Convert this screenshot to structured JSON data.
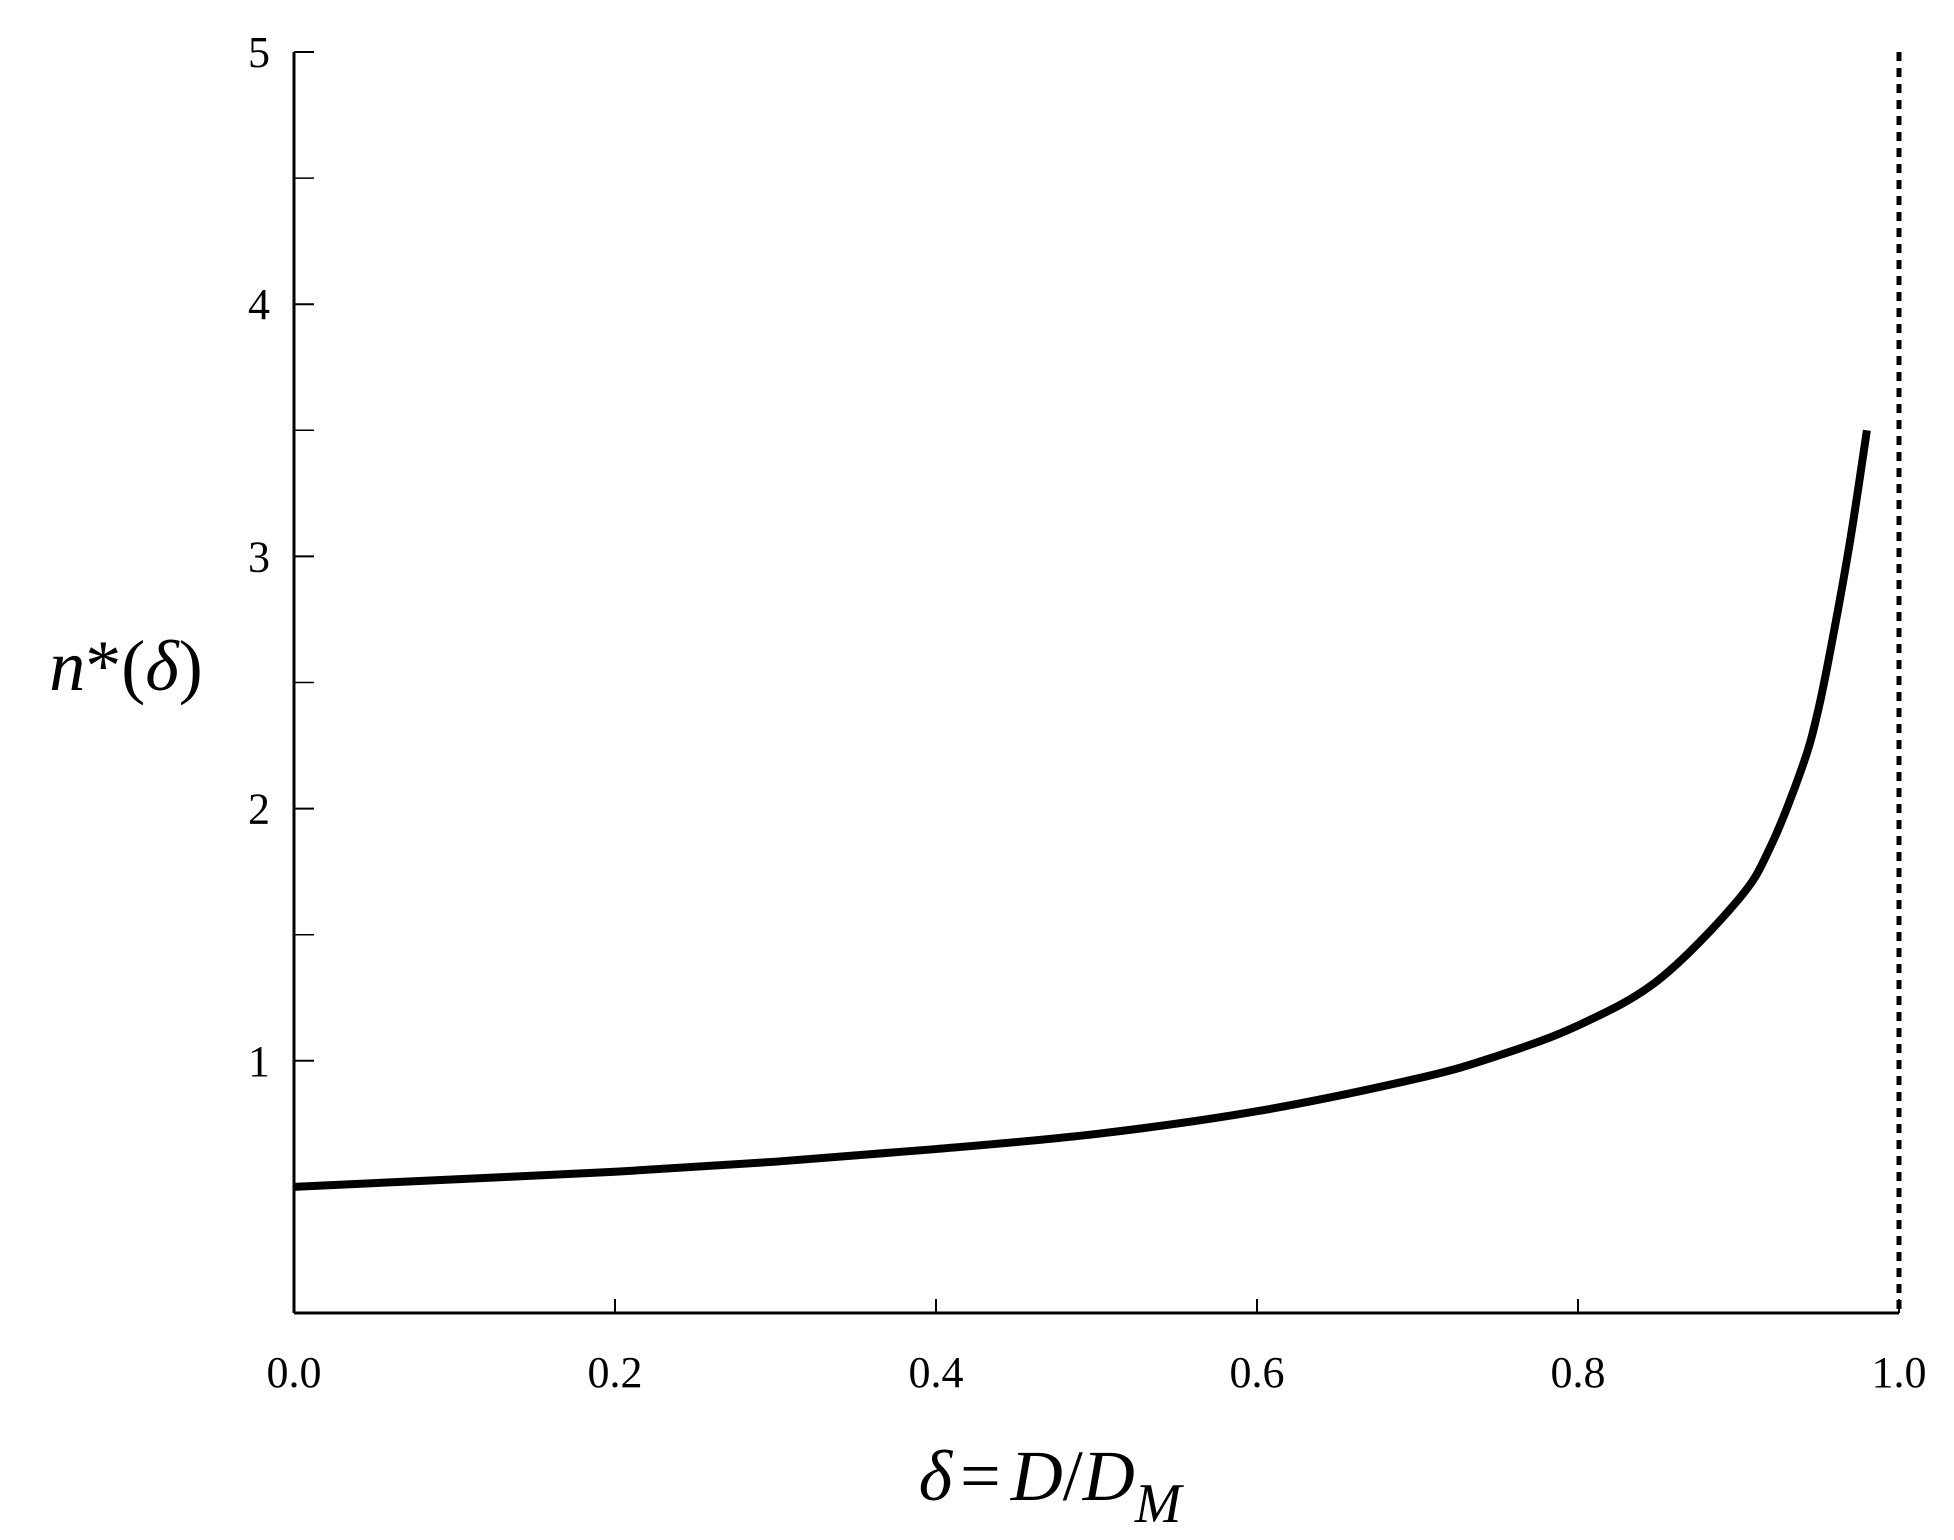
{
  "chart_data": {
    "type": "line",
    "title": "",
    "xlabel": {
      "symbol": "δ",
      "equals": "=",
      "numerator": "D",
      "slash": "/",
      "denominator": "D",
      "denominator_subscript": "M"
    },
    "ylabel": {
      "fn": "n",
      "star": "*",
      "open": "(",
      "arg": "δ",
      "close": ")"
    },
    "xlim": [
      0,
      1.0
    ],
    "ylim": [
      0,
      5
    ],
    "x_ticks": [
      0.0,
      0.2,
      0.4,
      0.6,
      0.8,
      1.0
    ],
    "x_tick_labels": [
      "0.0",
      "0.2",
      "0.4",
      "0.6",
      "0.8",
      "1.0"
    ],
    "y_ticks_major": [
      1,
      2,
      3,
      4,
      5
    ],
    "y_tick_labels": [
      "1",
      "2",
      "3",
      "4",
      "5"
    ],
    "y_ticks_minor": [
      0.5,
      1.5,
      2.5,
      3.5,
      4.5
    ],
    "grid": false,
    "legend": "none",
    "series": [
      {
        "style": "solid",
        "color": "#000000",
        "x": [
          0.0,
          0.1,
          0.2,
          0.3,
          0.4,
          0.5,
          0.6,
          0.7,
          0.75,
          0.8,
          0.85,
          0.9,
          0.92,
          0.94,
          0.95,
          0.96,
          0.97,
          0.98
        ],
        "y": [
          0.5,
          0.53,
          0.56,
          0.6,
          0.65,
          0.71,
          0.8,
          0.93,
          1.02,
          1.14,
          1.32,
          1.64,
          1.85,
          2.17,
          2.4,
          2.72,
          3.08,
          3.5
        ]
      }
    ],
    "reference_lines": [
      {
        "orientation": "vertical",
        "x": 1.0,
        "style": "dotted",
        "color": "#000000"
      }
    ]
  }
}
